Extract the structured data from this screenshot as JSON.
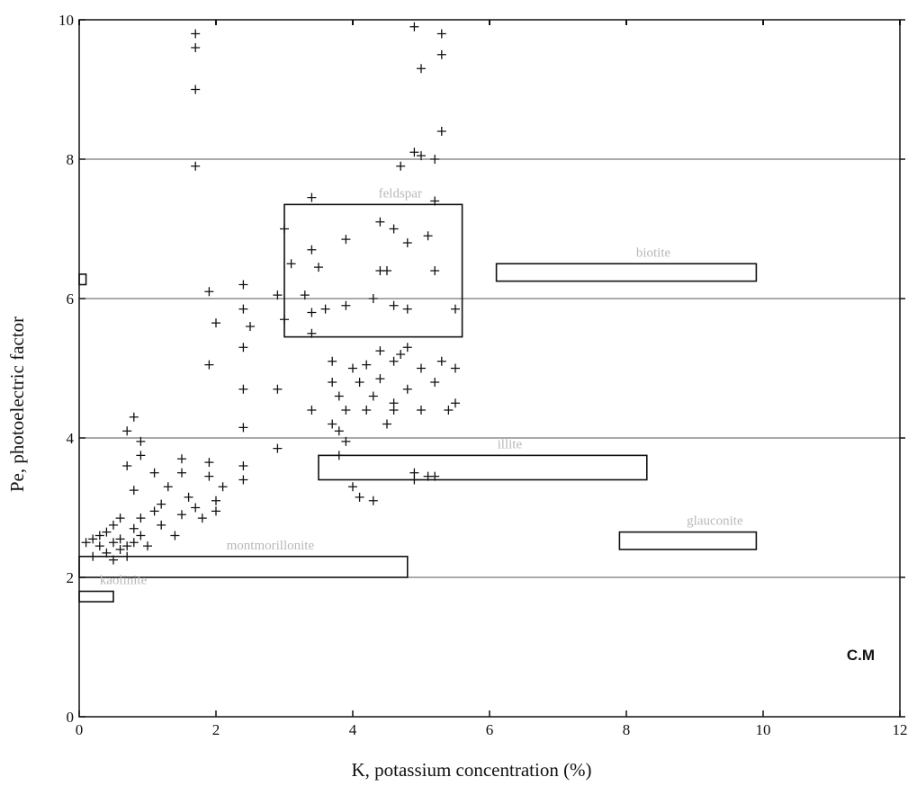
{
  "chart_data": {
    "type": "scatter",
    "xlabel": "K, potassium concentration (%)",
    "ylabel": "Pe, photoelectric factor",
    "xlim": [
      0,
      12
    ],
    "ylim": [
      0,
      10
    ],
    "x_ticks": [
      0,
      2,
      4,
      6,
      8,
      10,
      12
    ],
    "y_ticks": [
      0,
      2,
      4,
      6,
      8,
      10
    ],
    "grid": "horizontal",
    "marker": "plus",
    "annotation": "C.M",
    "mineral_zones": [
      {
        "label": "",
        "x0": 0.0,
        "x1": 0.1,
        "y0": 6.2,
        "y1": 6.35
      },
      {
        "label": "feldspar",
        "x0": 3.0,
        "x1": 5.6,
        "y0": 5.45,
        "y1": 7.35
      },
      {
        "label": "biotite",
        "x0": 6.1,
        "x1": 9.9,
        "y0": 6.25,
        "y1": 6.5
      },
      {
        "label": "illite",
        "x0": 3.5,
        "x1": 8.3,
        "y0": 3.4,
        "y1": 3.75
      },
      {
        "label": "montmorillonite",
        "x0": 0.0,
        "x1": 4.8,
        "y0": 2.0,
        "y1": 2.3
      },
      {
        "label": "glauconite",
        "x0": 7.9,
        "x1": 9.9,
        "y0": 2.4,
        "y1": 2.65
      },
      {
        "label": "kaolinite",
        "x0": 0.0,
        "x1": 0.5,
        "y0": 1.65,
        "y1": 1.8
      }
    ],
    "points": [
      [
        1.7,
        9.8
      ],
      [
        1.7,
        9.6
      ],
      [
        1.7,
        9.0
      ],
      [
        1.7,
        7.9
      ],
      [
        4.9,
        9.9
      ],
      [
        5.3,
        9.8
      ],
      [
        5.3,
        9.5
      ],
      [
        5.0,
        9.3
      ],
      [
        5.3,
        8.4
      ],
      [
        4.9,
        8.1
      ],
      [
        5.0,
        8.05
      ],
      [
        5.2,
        8.0
      ],
      [
        4.7,
        7.9
      ],
      [
        3.4,
        7.45
      ],
      [
        5.2,
        7.4
      ],
      [
        3.0,
        7.0
      ],
      [
        4.4,
        7.1
      ],
      [
        4.6,
        7.0
      ],
      [
        3.9,
        6.85
      ],
      [
        4.8,
        6.8
      ],
      [
        5.1,
        6.9
      ],
      [
        3.4,
        6.7
      ],
      [
        3.1,
        6.5
      ],
      [
        3.5,
        6.45
      ],
      [
        4.4,
        6.4
      ],
      [
        4.5,
        6.4
      ],
      [
        5.2,
        6.4
      ],
      [
        1.9,
        6.1
      ],
      [
        2.4,
        6.2
      ],
      [
        2.9,
        6.05
      ],
      [
        3.3,
        6.05
      ],
      [
        4.3,
        6.0
      ],
      [
        4.6,
        5.9
      ],
      [
        2.4,
        5.85
      ],
      [
        3.6,
        5.85
      ],
      [
        3.9,
        5.9
      ],
      [
        4.8,
        5.85
      ],
      [
        5.5,
        5.85
      ],
      [
        2.0,
        5.65
      ],
      [
        3.0,
        5.7
      ],
      [
        3.4,
        5.8
      ],
      [
        2.5,
        5.6
      ],
      [
        3.4,
        5.5
      ],
      [
        2.4,
        5.3
      ],
      [
        4.4,
        5.25
      ],
      [
        4.7,
        5.2
      ],
      [
        4.8,
        5.3
      ],
      [
        5.3,
        5.1
      ],
      [
        1.9,
        5.05
      ],
      [
        3.7,
        5.1
      ],
      [
        4.0,
        5.0
      ],
      [
        4.2,
        5.05
      ],
      [
        4.6,
        5.1
      ],
      [
        5.0,
        5.0
      ],
      [
        5.5,
        5.0
      ],
      [
        3.7,
        4.8
      ],
      [
        4.1,
        4.8
      ],
      [
        4.4,
        4.85
      ],
      [
        4.8,
        4.7
      ],
      [
        5.2,
        4.8
      ],
      [
        3.8,
        4.6
      ],
      [
        4.3,
        4.6
      ],
      [
        4.6,
        4.5
      ],
      [
        5.0,
        4.4
      ],
      [
        5.5,
        4.5
      ],
      [
        2.4,
        4.7
      ],
      [
        2.9,
        4.7
      ],
      [
        3.4,
        4.4
      ],
      [
        3.9,
        4.4
      ],
      [
        4.2,
        4.4
      ],
      [
        4.6,
        4.4
      ],
      [
        5.4,
        4.4
      ],
      [
        2.4,
        4.15
      ],
      [
        3.7,
        4.2
      ],
      [
        3.8,
        4.1
      ],
      [
        4.5,
        4.2
      ],
      [
        3.9,
        3.95
      ],
      [
        3.8,
        3.75
      ],
      [
        2.9,
        3.85
      ],
      [
        0.8,
        4.3
      ],
      [
        0.7,
        4.1
      ],
      [
        0.9,
        3.95
      ],
      [
        0.9,
        3.75
      ],
      [
        1.5,
        3.7
      ],
      [
        1.9,
        3.65
      ],
      [
        2.4,
        3.6
      ],
      [
        0.7,
        3.6
      ],
      [
        1.1,
        3.5
      ],
      [
        1.5,
        3.5
      ],
      [
        1.9,
        3.45
      ],
      [
        2.4,
        3.4
      ],
      [
        2.1,
        3.3
      ],
      [
        1.3,
        3.3
      ],
      [
        0.8,
        3.25
      ],
      [
        1.6,
        3.15
      ],
      [
        2.0,
        3.1
      ],
      [
        1.2,
        3.05
      ],
      [
        1.7,
        3.0
      ],
      [
        2.0,
        2.95
      ],
      [
        1.1,
        2.95
      ],
      [
        1.5,
        2.9
      ],
      [
        1.8,
        2.85
      ],
      [
        0.9,
        2.85
      ],
      [
        0.6,
        2.85
      ],
      [
        1.2,
        2.75
      ],
      [
        0.5,
        2.75
      ],
      [
        0.8,
        2.7
      ],
      [
        0.4,
        2.65
      ],
      [
        1.4,
        2.6
      ],
      [
        0.9,
        2.6
      ],
      [
        0.3,
        2.6
      ],
      [
        0.6,
        2.55
      ],
      [
        0.2,
        2.55
      ],
      [
        0.8,
        2.5
      ],
      [
        0.5,
        2.5
      ],
      [
        0.1,
        2.5
      ],
      [
        1.0,
        2.45
      ],
      [
        0.7,
        2.45
      ],
      [
        0.3,
        2.45
      ],
      [
        0.6,
        2.4
      ],
      [
        0.4,
        2.35
      ],
      [
        0.2,
        2.3
      ],
      [
        0.7,
        2.3
      ],
      [
        0.5,
        2.25
      ],
      [
        4.0,
        3.3
      ],
      [
        4.1,
        3.15
      ],
      [
        4.3,
        3.1
      ],
      [
        4.9,
        3.5
      ],
      [
        5.2,
        3.45
      ],
      [
        4.9,
        3.4
      ],
      [
        5.1,
        3.45
      ]
    ]
  }
}
